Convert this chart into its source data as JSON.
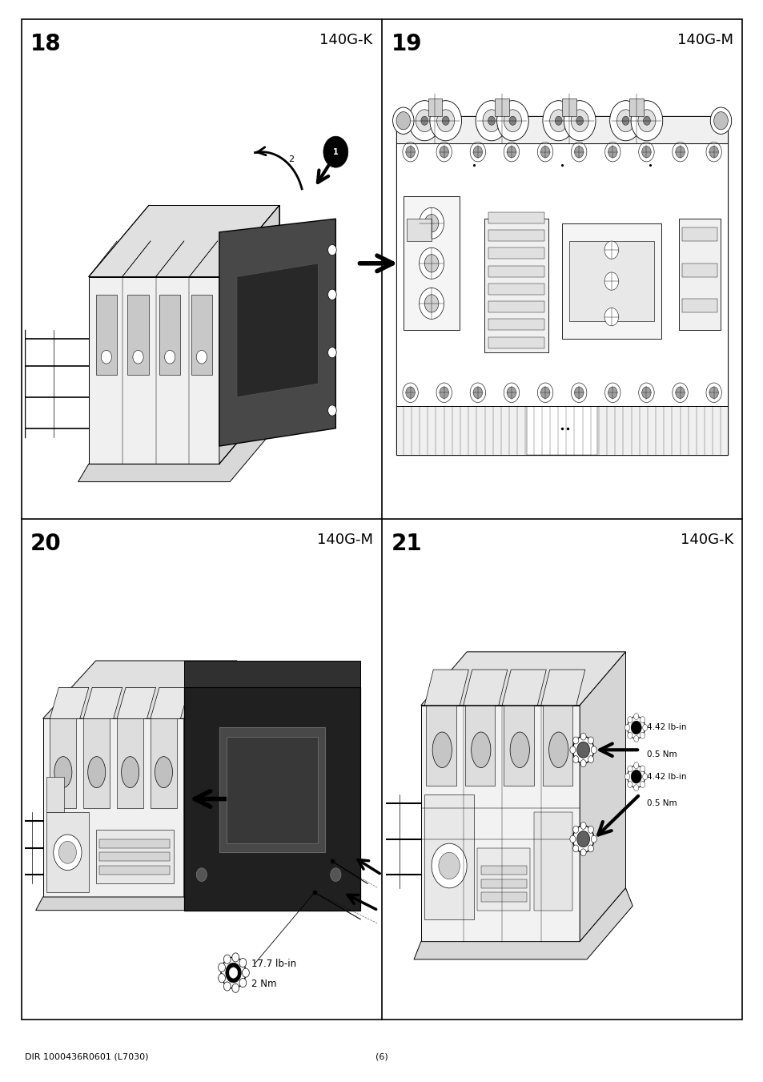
{
  "page_bg": "#ffffff",
  "border_color": "#000000",
  "border_lw": 1.2,
  "panels": [
    {
      "id": "18",
      "label": "140G-K",
      "row": 0,
      "col": 0
    },
    {
      "id": "19",
      "label": "140G-M",
      "row": 0,
      "col": 1
    },
    {
      "id": "20",
      "label": "140G-M",
      "row": 1,
      "col": 0
    },
    {
      "id": "21",
      "label": "140G-K",
      "row": 1,
      "col": 1
    }
  ],
  "footer_left": "DIR 1000436R0601 (L7030)",
  "footer_center": "(6)",
  "panel_number_fontsize": 20,
  "panel_label_fontsize": 13,
  "footer_fontsize": 8,
  "text_color": "#000000",
  "p20_torque_line1": "17.7 lb-in",
  "p20_torque_line2": "2 Nm",
  "p21_torque1_line1": "4.42 lb-in",
  "p21_torque1_line2": "0.5 Nm",
  "p21_torque2_line1": "4.42 lb-in",
  "p21_torque2_line2": "0.5 Nm"
}
